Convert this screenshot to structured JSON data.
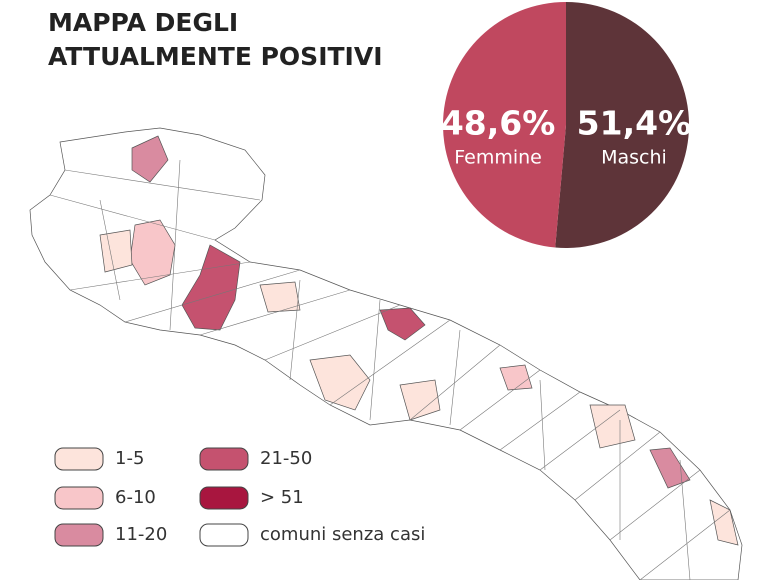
{
  "title_lines": [
    "MAPPA DEGLI",
    "ATTUALMENTE POSITIVI"
  ],
  "chart_data": {
    "type": "pie",
    "categories": [
      "Femmine",
      "Maschi"
    ],
    "values": [
      48.6,
      51.4
    ],
    "value_labels": [
      "48,6%",
      "51,4%"
    ],
    "colors": [
      "#c0485f",
      "#5e3439"
    ]
  },
  "legend": {
    "items": [
      {
        "label": "1-5",
        "color": "#fde4dc"
      },
      {
        "label": "6-10",
        "color": "#f8c6c9"
      },
      {
        "label": "11-20",
        "color": "#d98ba0"
      },
      {
        "label": "21-50",
        "color": "#c5526f"
      },
      {
        "label": "> 51",
        "color": "#a8163f"
      },
      {
        "label": "comuni senza casi",
        "color": "#ffffff"
      }
    ]
  }
}
